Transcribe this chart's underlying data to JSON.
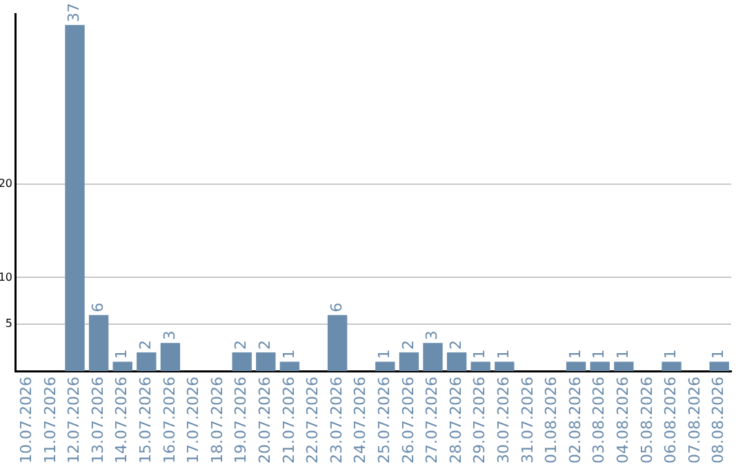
{
  "chart_data": {
    "type": "bar",
    "categories": [
      "10.07.2026",
      "11.07.2026",
      "12.07.2026",
      "13.07.2026",
      "14.07.2026",
      "15.07.2026",
      "16.07.2026",
      "17.07.2026",
      "18.07.2026",
      "19.07.2026",
      "20.07.2026",
      "21.07.2026",
      "22.07.2026",
      "23.07.2026",
      "24.07.2026",
      "25.07.2026",
      "26.07.2026",
      "27.07.2026",
      "28.07.2026",
      "29.07.2026",
      "30.07.2026",
      "31.07.2026",
      "01.08.2026",
      "02.08.2026",
      "03.08.2026",
      "04.08.2026",
      "05.08.2026",
      "06.08.2026",
      "07.08.2026",
      "08.08.2026"
    ],
    "values": [
      null,
      null,
      37,
      6,
      1,
      2,
      3,
      null,
      null,
      2,
      2,
      1,
      null,
      6,
      null,
      1,
      2,
      3,
      2,
      1,
      1,
      null,
      null,
      1,
      1,
      1,
      null,
      1,
      null,
      1
    ],
    "color": "#6a8cad",
    "ylim": [
      0,
      38.2
    ],
    "yticks": [
      5,
      10,
      20
    ],
    "grid": "y",
    "data_labels": true,
    "legend": false
  }
}
